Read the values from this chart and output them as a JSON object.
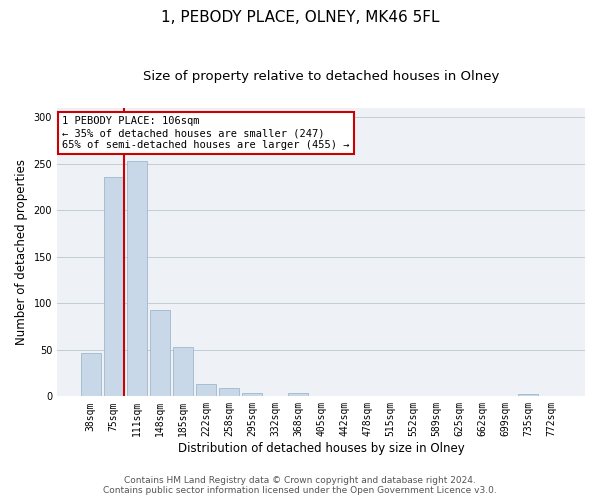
{
  "title": "1, PEBODY PLACE, OLNEY, MK46 5FL",
  "subtitle": "Size of property relative to detached houses in Olney",
  "xlabel": "Distribution of detached houses by size in Olney",
  "ylabel": "Number of detached properties",
  "bar_labels": [
    "38sqm",
    "75sqm",
    "111sqm",
    "148sqm",
    "185sqm",
    "222sqm",
    "258sqm",
    "295sqm",
    "332sqm",
    "368sqm",
    "405sqm",
    "442sqm",
    "478sqm",
    "515sqm",
    "552sqm",
    "589sqm",
    "625sqm",
    "662sqm",
    "699sqm",
    "735sqm",
    "772sqm"
  ],
  "bar_values": [
    47,
    236,
    253,
    93,
    53,
    13,
    9,
    4,
    0,
    4,
    0,
    0,
    0,
    0,
    0,
    0,
    0,
    0,
    0,
    3,
    0
  ],
  "bar_color": "#c8d8e8",
  "bar_edgecolor": "#a0b8cc",
  "vline_color": "#cc0000",
  "vline_x_bar_index": 1,
  "annotation_line1": "1 PEBODY PLACE: 106sqm",
  "annotation_line2": "← 35% of detached houses are smaller (247)",
  "annotation_line3": "65% of semi-detached houses are larger (455) →",
  "annotation_box_color": "white",
  "annotation_box_edgecolor": "#cc0000",
  "ylim": [
    0,
    310
  ],
  "yticks": [
    0,
    50,
    100,
    150,
    200,
    250,
    300
  ],
  "footer_line1": "Contains HM Land Registry data © Crown copyright and database right 2024.",
  "footer_line2": "Contains public sector information licensed under the Open Government Licence v3.0.",
  "bg_color": "#eef2f6",
  "grid_color": "#c0cdd8",
  "title_fontsize": 11,
  "subtitle_fontsize": 9.5,
  "ylabel_fontsize": 8.5,
  "xlabel_fontsize": 8.5,
  "tick_fontsize": 7,
  "annotation_fontsize": 7.5,
  "footer_fontsize": 6.5
}
